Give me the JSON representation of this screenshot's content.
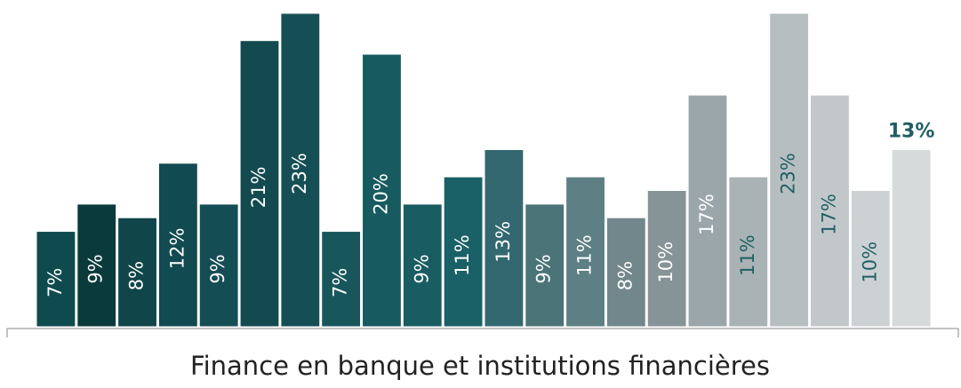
{
  "chart_data": {
    "type": "bar",
    "x_label": "Finance en banque et institutions financières",
    "values": [
      7,
      9,
      8,
      12,
      9,
      21,
      23,
      7,
      20,
      9,
      11,
      13,
      9,
      11,
      8,
      10,
      17,
      11,
      23,
      17,
      10,
      13
    ],
    "value_labels": [
      "7%",
      "9%",
      "8%",
      "12%",
      "9%",
      "21%",
      "23%",
      "7%",
      "20%",
      "9%",
      "11%",
      "13%",
      "9%",
      "11%",
      "8%",
      "10%",
      "17%",
      "11%",
      "23%",
      "17%",
      "10%",
      "13%"
    ],
    "colors": [
      "#0f4a4e",
      "#0b3a3d",
      "#104549",
      "#114a50",
      "#144e54",
      "#134a50",
      "#154f55",
      "#17575c",
      "#175a60",
      "#195c62",
      "#1a6067",
      "#336870",
      "#4b7479",
      "#5e7f84",
      "#72878b",
      "#869497",
      "#9aa6aa",
      "#a9b2b4",
      "#b7bec0",
      "#c2c8ca",
      "#ccd1d3",
      "#d6dadb"
    ],
    "label_colors": [
      "#ffffff",
      "#ffffff",
      "#ffffff",
      "#ffffff",
      "#ffffff",
      "#ffffff",
      "#ffffff",
      "#ffffff",
      "#ffffff",
      "#ffffff",
      "#ffffff",
      "#ffffff",
      "#ffffff",
      "#ffffff",
      "#ffffff",
      "#ffffff",
      "#ffffff",
      "#1f5f63",
      "#1f5f63",
      "#1f5f63",
      "#1f5f63",
      "#1f5f63"
    ]
  }
}
